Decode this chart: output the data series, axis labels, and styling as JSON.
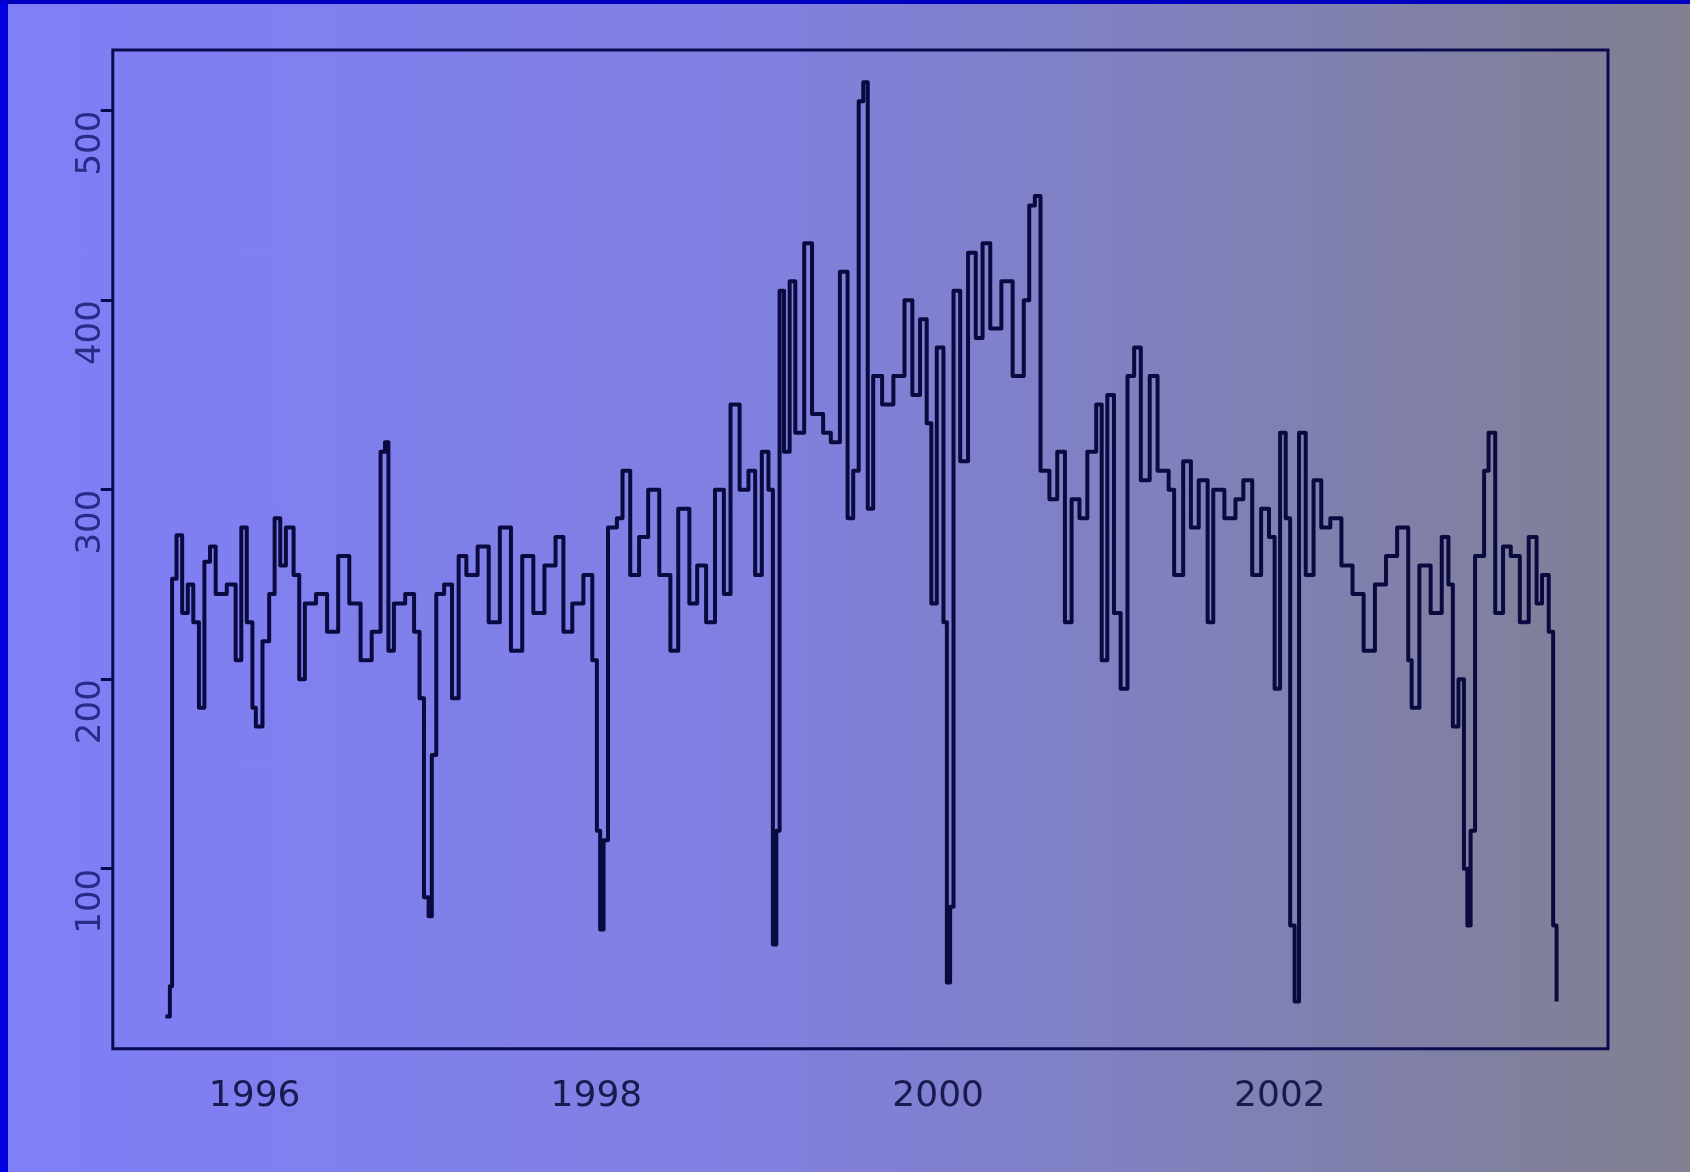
{
  "chart_data": {
    "type": "step",
    "x": [
      1995.478,
      1995.504,
      1995.517,
      1995.543,
      1995.576,
      1995.609,
      1995.641,
      1995.674,
      1995.706,
      1995.739,
      1995.772,
      1995.837,
      1995.889,
      1995.922,
      1995.954,
      1995.987,
      1996.007,
      1996.046,
      1996.085,
      1996.117,
      1996.15,
      1996.183,
      1996.228,
      1996.261,
      1996.294,
      1996.359,
      1996.424,
      1996.489,
      1996.554,
      1996.62,
      1996.685,
      1996.737,
      1996.763,
      1996.783,
      1996.815,
      1996.881,
      1996.933,
      1996.965,
      1996.991,
      1997.018,
      1997.037,
      1997.063,
      1997.109,
      1997.155,
      1997.194,
      1997.239,
      1997.305,
      1997.37,
      1997.435,
      1997.5,
      1997.566,
      1997.631,
      1997.696,
      1997.761,
      1997.807,
      1997.859,
      1997.924,
      1997.976,
      1998.003,
      1998.022,
      1998.042,
      1998.068,
      1998.12,
      1998.153,
      1998.198,
      1998.25,
      1998.303,
      1998.368,
      1998.433,
      1998.479,
      1998.544,
      1998.59,
      1998.642,
      1998.694,
      1998.746,
      1998.785,
      1998.838,
      1998.89,
      1998.929,
      1998.968,
      1999.007,
      1999.033,
      1999.053,
      1999.072,
      1999.098,
      1999.131,
      1999.164,
      1999.216,
      1999.262,
      1999.327,
      1999.372,
      1999.425,
      1999.47,
      1999.503,
      1999.535,
      1999.562,
      1999.588,
      1999.62,
      1999.672,
      1999.738,
      1999.803,
      1999.849,
      1999.894,
      1999.933,
      1999.96,
      1999.992,
      2000.031,
      2000.051,
      2000.07,
      2000.09,
      2000.129,
      2000.175,
      2000.22,
      2000.26,
      2000.305,
      2000.37,
      2000.436,
      2000.501,
      2000.533,
      2000.566,
      2000.599,
      2000.651,
      2000.697,
      2000.742,
      2000.781,
      2000.827,
      2000.873,
      2000.925,
      2000.957,
      2000.99,
      2001.029,
      2001.068,
      2001.108,
      2001.147,
      2001.186,
      2001.238,
      2001.284,
      2001.349,
      2001.381,
      2001.434,
      2001.479,
      2001.525,
      2001.577,
      2001.61,
      2001.675,
      2001.74,
      2001.786,
      2001.838,
      2001.89,
      2001.936,
      2001.969,
      2002.001,
      2002.034,
      2002.06,
      2002.086,
      2002.112,
      2002.151,
      2002.197,
      2002.242,
      2002.295,
      2002.36,
      2002.425,
      2002.49,
      2002.556,
      2002.621,
      2002.686,
      2002.751,
      2002.771,
      2002.816,
      2002.882,
      2002.947,
      2002.986,
      2003.012,
      2003.045,
      2003.077,
      2003.097,
      2003.116,
      2003.142,
      2003.195,
      2003.221,
      2003.26,
      2003.306,
      2003.351,
      2003.404,
      2003.456,
      2003.502,
      2003.534,
      2003.573,
      2003.599,
      2003.619
    ],
    "series": [
      {
        "color": "#0a0a40",
        "values": [
          22,
          38,
          253,
          276,
          235,
          250,
          230,
          185,
          262,
          270,
          245,
          250,
          210,
          280,
          230,
          185,
          175,
          220,
          245,
          285,
          260,
          280,
          255,
          200,
          240,
          245,
          225,
          265,
          240,
          210,
          225,
          320,
          325,
          215,
          240,
          245,
          225,
          190,
          85,
          75,
          160,
          245,
          250,
          190,
          265,
          255,
          270,
          230,
          280,
          215,
          265,
          235,
          260,
          275,
          225,
          240,
          255,
          210,
          120,
          68,
          115,
          280,
          285,
          310,
          255,
          275,
          300,
          255,
          215,
          290,
          240,
          260,
          230,
          300,
          245,
          345,
          300,
          310,
          255,
          320,
          300,
          60,
          120,
          405,
          320,
          410,
          330,
          430,
          340,
          330,
          325,
          415,
          285,
          310,
          505,
          515,
          290,
          360,
          345,
          360,
          400,
          350,
          390,
          335,
          240,
          375,
          230,
          40,
          80,
          405,
          315,
          425,
          380,
          430,
          385,
          410,
          360,
          400,
          450,
          455,
          310,
          295,
          320,
          230,
          295,
          285,
          320,
          345,
          210,
          350,
          235,
          195,
          360,
          375,
          305,
          360,
          310,
          300,
          255,
          315,
          280,
          305,
          230,
          300,
          285,
          295,
          305,
          255,
          290,
          275,
          195,
          330,
          285,
          70,
          30,
          330,
          255,
          305,
          280,
          285,
          260,
          245,
          215,
          250,
          265,
          280,
          210,
          185,
          260,
          235,
          275,
          250,
          175,
          200,
          100,
          70,
          120,
          265,
          310,
          330,
          235,
          270,
          265,
          230,
          275,
          240,
          255,
          225,
          70,
          30
        ]
      }
    ],
    "xlim": [
      1995.17,
      2003.92
    ],
    "xticks": [
      1996,
      1998,
      2000,
      2002
    ],
    "ylim": [
      5,
      532
    ],
    "yticks": [
      100,
      200,
      300,
      400,
      500
    ],
    "grid": false,
    "legend": false,
    "marker": "none",
    "line_style": "solid"
  }
}
